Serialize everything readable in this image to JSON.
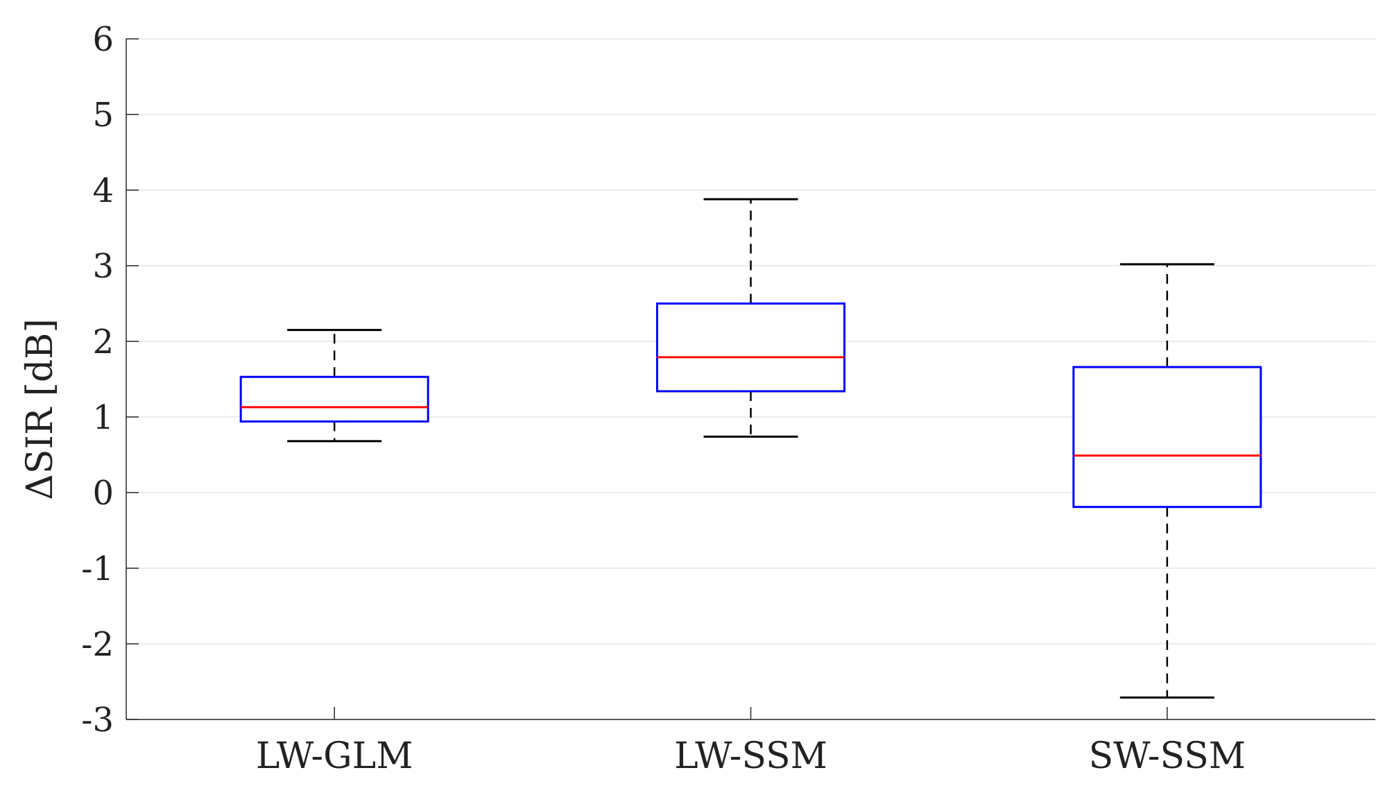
{
  "chart_data": {
    "type": "box",
    "title": "",
    "xlabel": "",
    "ylabel": "ΔSIR [dB]",
    "ylim": [
      -3,
      6
    ],
    "yticks": [
      -3,
      -2,
      -1,
      0,
      1,
      2,
      3,
      4,
      5,
      6
    ],
    "ytick_labels": [
      "-3",
      "-2",
      "-1",
      "0",
      "1",
      "2",
      "3",
      "4",
      "5",
      "6"
    ],
    "grid": "horizontal",
    "categories": [
      "LW-GLM",
      "LW-SSM",
      "SW-SSM"
    ],
    "boxes": [
      {
        "name": "LW-GLM",
        "whisker_low": 0.68,
        "q1": 0.94,
        "median": 1.13,
        "q3": 1.53,
        "whisker_high": 2.15
      },
      {
        "name": "LW-SSM",
        "whisker_low": 0.74,
        "q1": 1.34,
        "median": 1.79,
        "q3": 2.5,
        "whisker_high": 3.88
      },
      {
        "name": "SW-SSM",
        "whisker_low": -2.71,
        "q1": -0.19,
        "median": 0.49,
        "q3": 1.66,
        "whisker_high": 3.02
      }
    ],
    "colors": {
      "box": "#0000ff",
      "median": "#ff0000",
      "whisker": "#000000",
      "grid": "#e6e6e6",
      "axis": "#262626"
    }
  }
}
